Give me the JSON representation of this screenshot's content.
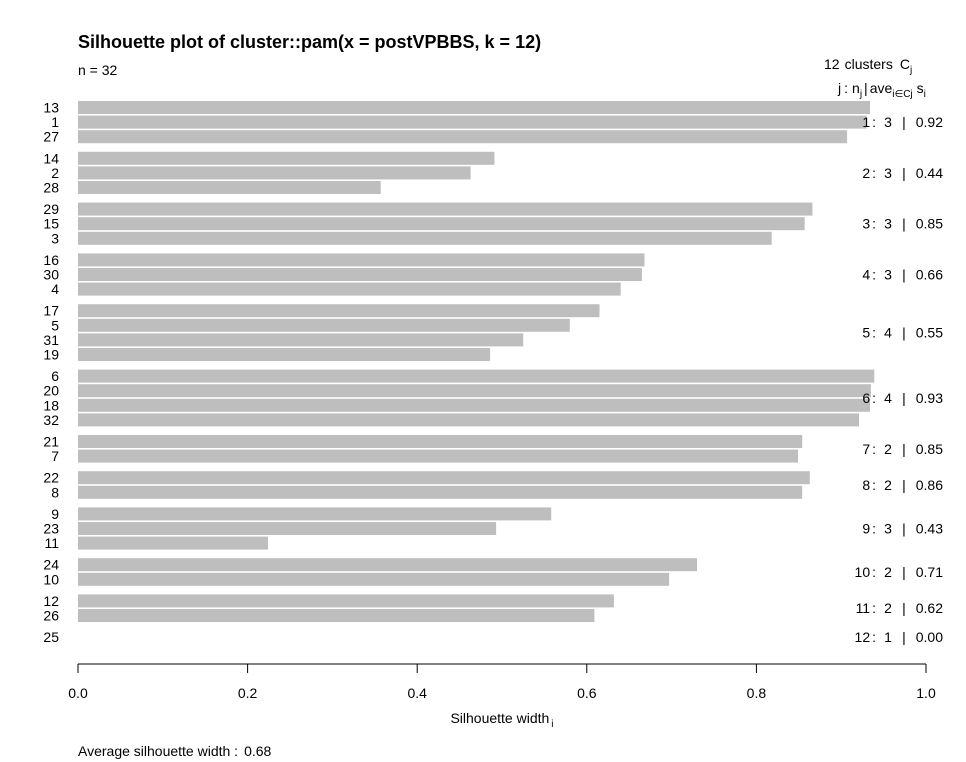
{
  "chart_data": {
    "type": "bar",
    "orientation": "horizontal",
    "title": "Silhouette plot of cluster::pam(x = postVPBBS, k = 12)",
    "n_label": "n = 32",
    "header": {
      "clusters_count": "12",
      "clusters_word": "clusters",
      "C": "C",
      "C_sub": "j",
      "j": "j",
      "colon": ":",
      "n": "n",
      "n_sub": "j",
      "bar": "|",
      "ave": "ave",
      "ave_sub": "i∈Cj",
      "s": "s",
      "s_sub": "i"
    },
    "xlabel": "Silhouette width",
    "xlabel_sub": "i",
    "footer_label": "Average silhouette width :",
    "footer_value": "0.68",
    "xlim": [
      0,
      1
    ],
    "x_ticks": [
      "0.0",
      "0.2",
      "0.4",
      "0.6",
      "0.8",
      "1.0"
    ],
    "bar_color": "#bebebe",
    "clusters": [
      {
        "j": "1",
        "n": "3",
        "ave": "0.92",
        "members": [
          {
            "id": "13",
            "s": 0.934
          },
          {
            "id": "1",
            "s": 0.93
          },
          {
            "id": "27",
            "s": 0.907
          }
        ]
      },
      {
        "j": "2",
        "n": "3",
        "ave": "0.44",
        "members": [
          {
            "id": "14",
            "s": 0.491
          },
          {
            "id": "2",
            "s": 0.463
          },
          {
            "id": "28",
            "s": 0.357
          }
        ]
      },
      {
        "j": "3",
        "n": "3",
        "ave": "0.85",
        "members": [
          {
            "id": "29",
            "s": 0.866
          },
          {
            "id": "15",
            "s": 0.857
          },
          {
            "id": "3",
            "s": 0.818
          }
        ]
      },
      {
        "j": "4",
        "n": "3",
        "ave": "0.66",
        "members": [
          {
            "id": "16",
            "s": 0.668
          },
          {
            "id": "30",
            "s": 0.665
          },
          {
            "id": "4",
            "s": 0.64
          }
        ]
      },
      {
        "j": "5",
        "n": "4",
        "ave": "0.55",
        "members": [
          {
            "id": "17",
            "s": 0.615
          },
          {
            "id": "5",
            "s": 0.58
          },
          {
            "id": "31",
            "s": 0.525
          },
          {
            "id": "19",
            "s": 0.486
          }
        ]
      },
      {
        "j": "6",
        "n": "4",
        "ave": "0.93",
        "members": [
          {
            "id": "6",
            "s": 0.939
          },
          {
            "id": "20",
            "s": 0.935
          },
          {
            "id": "18",
            "s": 0.934
          },
          {
            "id": "32",
            "s": 0.921
          }
        ]
      },
      {
        "j": "7",
        "n": "2",
        "ave": "0.85",
        "members": [
          {
            "id": "21",
            "s": 0.854
          },
          {
            "id": "7",
            "s": 0.849
          }
        ]
      },
      {
        "j": "8",
        "n": "2",
        "ave": "0.86",
        "members": [
          {
            "id": "22",
            "s": 0.863
          },
          {
            "id": "8",
            "s": 0.854
          }
        ]
      },
      {
        "j": "9",
        "n": "3",
        "ave": "0.43",
        "members": [
          {
            "id": "9",
            "s": 0.558
          },
          {
            "id": "23",
            "s": 0.493
          },
          {
            "id": "11",
            "s": 0.224
          }
        ]
      },
      {
        "j": "10",
        "n": "2",
        "ave": "0.71",
        "members": [
          {
            "id": "24",
            "s": 0.73
          },
          {
            "id": "10",
            "s": 0.697
          }
        ]
      },
      {
        "j": "11",
        "n": "2",
        "ave": "0.62",
        "members": [
          {
            "id": "12",
            "s": 0.632
          },
          {
            "id": "26",
            "s": 0.609
          }
        ]
      },
      {
        "j": "12",
        "n": "1",
        "ave": "0.00",
        "members": [
          {
            "id": "25",
            "s": 0.0
          }
        ]
      }
    ]
  }
}
